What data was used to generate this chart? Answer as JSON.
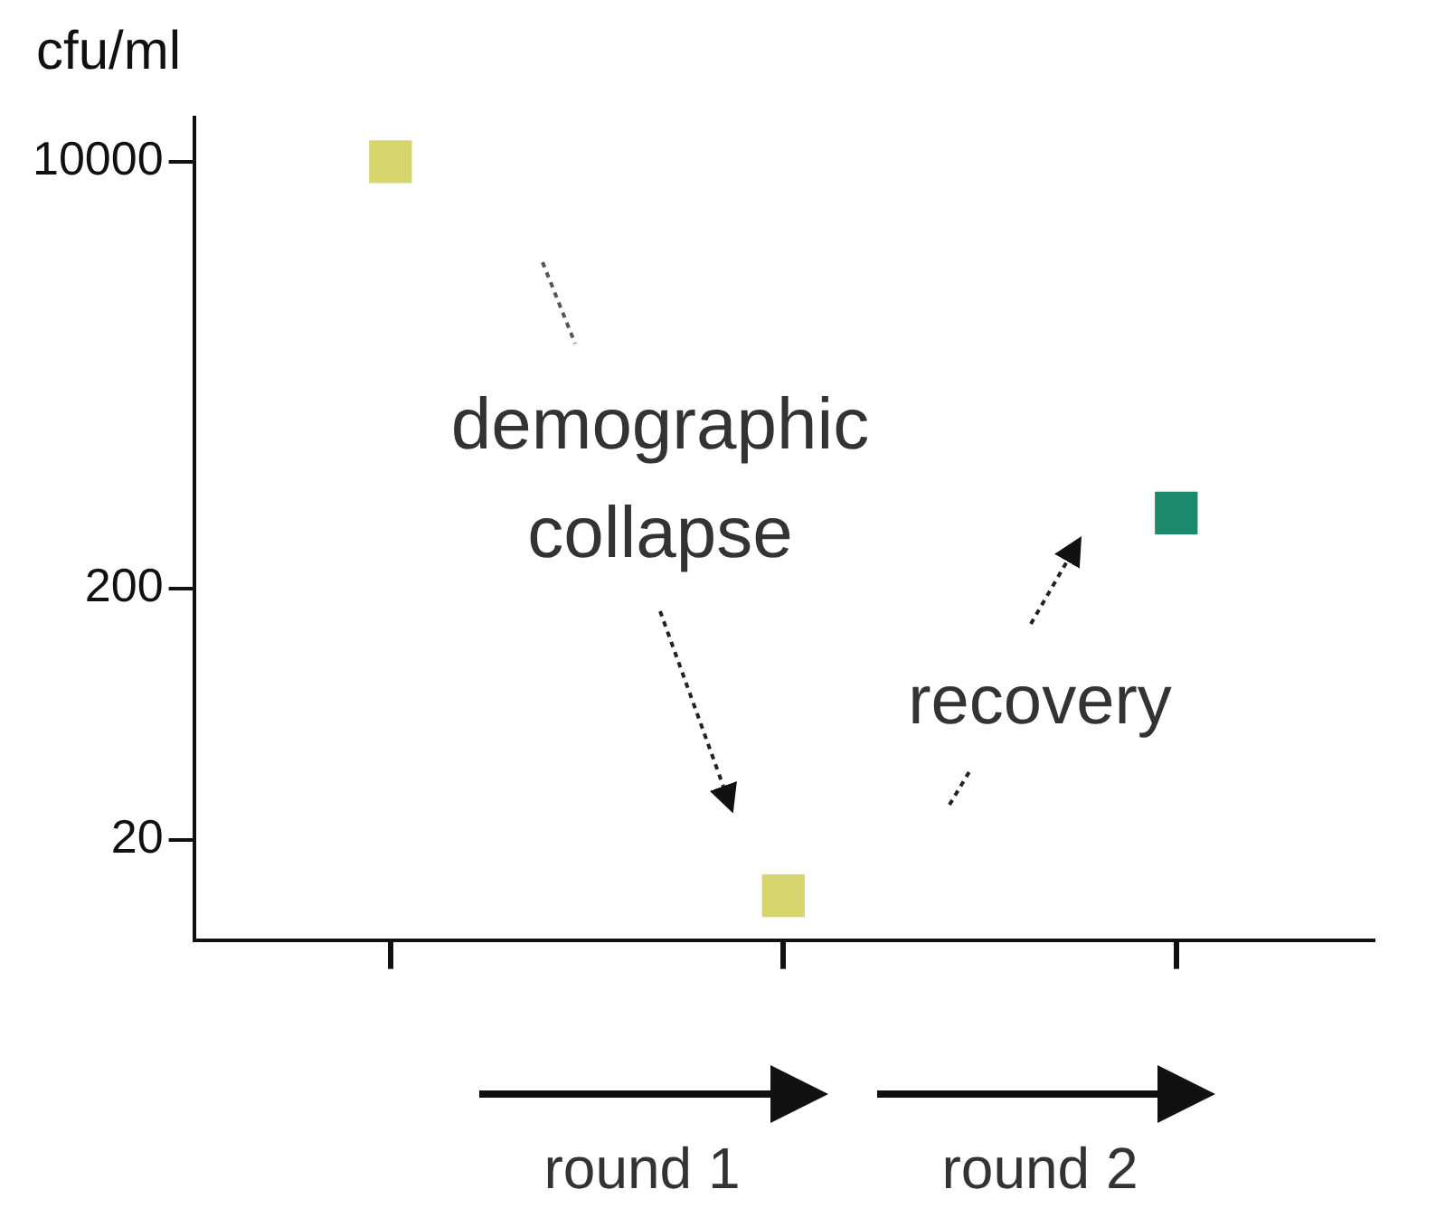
{
  "chart_data": {
    "type": "scatter",
    "ylabel": "cfu/ml",
    "categories": [
      null,
      null,
      null
    ],
    "series": [
      {
        "colors": [
          "#d6d56e",
          "#d6d56e",
          "#1b8a6c"
        ],
        "values": [
          10000,
          12,
          400
        ]
      }
    ],
    "marker": "square",
    "log": "y",
    "ylim": [
      8,
      15000
    ],
    "yticks": [
      20,
      200,
      10000
    ],
    "grid": false,
    "legend": false,
    "annotations": [
      "demographic collapse",
      "recovery",
      "round 1",
      "round 2"
    ]
  }
}
